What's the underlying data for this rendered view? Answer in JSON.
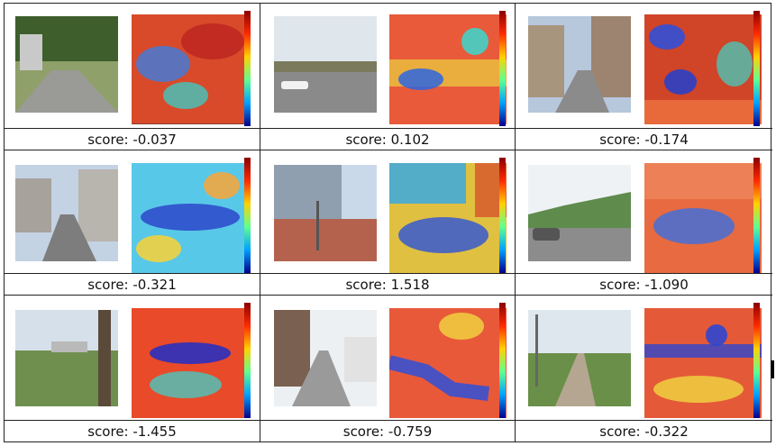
{
  "scores": [
    {
      "label": "score:",
      "value": "-0.037"
    },
    {
      "label": "score:",
      "value": "0.102"
    },
    {
      "label": "score:",
      "value": "-0.174"
    },
    {
      "label": "score:",
      "value": "-0.321"
    },
    {
      "label": "score:",
      "value": "1.518"
    },
    {
      "label": "score:",
      "value": "-1.090"
    },
    {
      "label": "score:",
      "value": "-1.455"
    },
    {
      "label": "score:",
      "value": "-0.759"
    },
    {
      "label": "score:",
      "value": "-0.322"
    }
  ],
  "colors": {
    "heat_high": "#c62828",
    "heat_mid": "#f6e23b",
    "heat_low": "#1e3ce0",
    "border": "#222222"
  }
}
